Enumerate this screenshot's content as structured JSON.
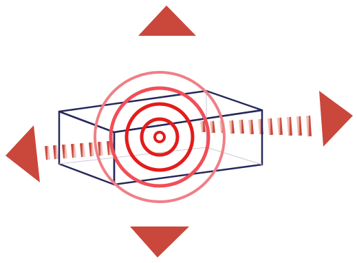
{
  "illustration": {
    "icons": {
      "box": "box-outline-icon",
      "rings": "concentric-rings-icon",
      "up": "arrow-up-icon",
      "down": "arrow-down-icon",
      "left": "arrow-left-icon",
      "right": "arrow-right-icon"
    },
    "colors": {
      "box_stroke": "#26285a",
      "arrow_fill": "#c9473b",
      "arrow_fill_dark": "#b33d31",
      "dash_stroke": "#d06a58",
      "ring_red": "#e31c1c",
      "ring_red_light": "#f07f86",
      "ring_red_mid": "#f04f58"
    }
  }
}
